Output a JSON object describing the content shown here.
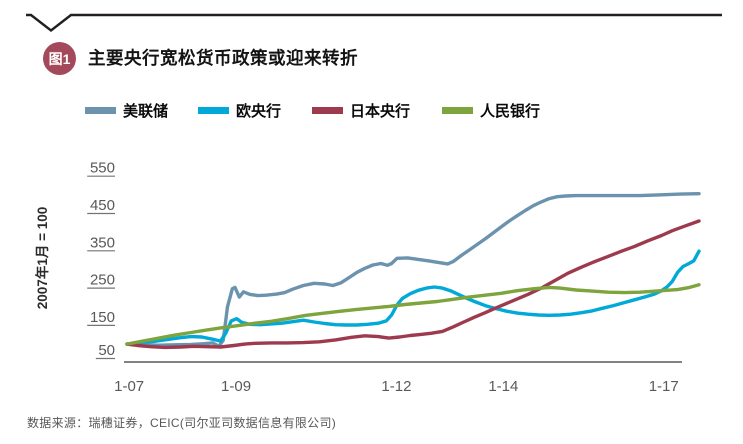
{
  "header": {
    "figure_badge": "图1",
    "title": "主要央行宽松货币政策或迎来转折"
  },
  "legend": [
    {
      "label": "美联储",
      "color": "#6b93ae"
    },
    {
      "label": "欧央行",
      "color": "#00a9d8"
    },
    {
      "label": "日本央行",
      "color": "#9d3a4d"
    },
    {
      "label": "人民银行",
      "color": "#7ea43d"
    }
  ],
  "source": "数据来源：瑞穗证券，CEIC(司尔亚司数据信息有限公司)",
  "badge_color": "#a4495b",
  "chart_data": {
    "type": "line",
    "title": "主要央行宽松货币政策或迎来转折",
    "xlabel": "",
    "ylabel": "2007年1月 = 100",
    "ylim": [
      50,
      570
    ],
    "xlim": [
      2007.0,
      2017.7
    ],
    "grid": false,
    "legend_position": "top",
    "yticks": [
      550,
      450,
      350,
      250,
      150,
      50
    ],
    "xticks": [
      {
        "label": "1-07",
        "year": 2007.04
      },
      {
        "label": "1-09",
        "year": 2009.04
      },
      {
        "label": "1-12",
        "year": 2012.04
      },
      {
        "label": "1-14",
        "year": 2014.04
      },
      {
        "label": "1-17",
        "year": 2017.04
      }
    ],
    "series": [
      {
        "name": "美联储",
        "color": "#6b93ae",
        "points": [
          [
            2007.0,
            100
          ],
          [
            2007.3,
            98
          ],
          [
            2007.6,
            97
          ],
          [
            2007.9,
            98
          ],
          [
            2008.2,
            99
          ],
          [
            2008.45,
            101
          ],
          [
            2008.6,
            103
          ],
          [
            2008.72,
            94
          ],
          [
            2008.8,
            110
          ],
          [
            2008.88,
            200
          ],
          [
            2008.97,
            248
          ],
          [
            2009.02,
            252
          ],
          [
            2009.1,
            226
          ],
          [
            2009.18,
            240
          ],
          [
            2009.3,
            233
          ],
          [
            2009.45,
            230
          ],
          [
            2009.6,
            231
          ],
          [
            2009.8,
            234
          ],
          [
            2009.95,
            238
          ],
          [
            2010.1,
            247
          ],
          [
            2010.3,
            257
          ],
          [
            2010.5,
            263
          ],
          [
            2010.7,
            261
          ],
          [
            2010.85,
            257
          ],
          [
            2011.0,
            264
          ],
          [
            2011.15,
            278
          ],
          [
            2011.3,
            292
          ],
          [
            2011.45,
            303
          ],
          [
            2011.6,
            312
          ],
          [
            2011.75,
            316
          ],
          [
            2011.87,
            311
          ],
          [
            2011.95,
            316
          ],
          [
            2012.05,
            330
          ],
          [
            2012.25,
            331
          ],
          [
            2012.45,
            327
          ],
          [
            2012.65,
            323
          ],
          [
            2012.85,
            318
          ],
          [
            2013.0,
            315
          ],
          [
            2013.1,
            321
          ],
          [
            2013.25,
            337
          ],
          [
            2013.4,
            352
          ],
          [
            2013.55,
            367
          ],
          [
            2013.7,
            382
          ],
          [
            2013.85,
            398
          ],
          [
            2014.0,
            414
          ],
          [
            2014.15,
            430
          ],
          [
            2014.3,
            444
          ],
          [
            2014.45,
            458
          ],
          [
            2014.6,
            471
          ],
          [
            2014.75,
            481
          ],
          [
            2014.9,
            490
          ],
          [
            2015.05,
            495
          ],
          [
            2015.2,
            497
          ],
          [
            2015.4,
            498
          ],
          [
            2015.8,
            498
          ],
          [
            2016.2,
            498
          ],
          [
            2016.6,
            498
          ],
          [
            2017.0,
            500
          ],
          [
            2017.35,
            502
          ],
          [
            2017.7,
            503
          ]
        ]
      },
      {
        "name": "欧央行",
        "color": "#00a9d8",
        "points": [
          [
            2007.0,
            100
          ],
          [
            2007.25,
            104
          ],
          [
            2007.5,
            107
          ],
          [
            2007.75,
            112
          ],
          [
            2008.0,
            117
          ],
          [
            2008.2,
            120
          ],
          [
            2008.4,
            119
          ],
          [
            2008.6,
            113
          ],
          [
            2008.75,
            108
          ],
          [
            2008.85,
            130
          ],
          [
            2008.95,
            162
          ],
          [
            2009.05,
            168
          ],
          [
            2009.15,
            158
          ],
          [
            2009.3,
            153
          ],
          [
            2009.5,
            152
          ],
          [
            2009.7,
            154
          ],
          [
            2009.9,
            156
          ],
          [
            2010.1,
            160
          ],
          [
            2010.3,
            164
          ],
          [
            2010.5,
            159
          ],
          [
            2010.7,
            155
          ],
          [
            2010.9,
            152
          ],
          [
            2011.1,
            151
          ],
          [
            2011.3,
            151
          ],
          [
            2011.5,
            153
          ],
          [
            2011.7,
            156
          ],
          [
            2011.85,
            162
          ],
          [
            2011.95,
            178
          ],
          [
            2012.05,
            205
          ],
          [
            2012.15,
            222
          ],
          [
            2012.3,
            235
          ],
          [
            2012.45,
            244
          ],
          [
            2012.6,
            250
          ],
          [
            2012.75,
            253
          ],
          [
            2012.9,
            250
          ],
          [
            2013.05,
            243
          ],
          [
            2013.2,
            233
          ],
          [
            2013.35,
            223
          ],
          [
            2013.5,
            214
          ],
          [
            2013.7,
            203
          ],
          [
            2013.9,
            195
          ],
          [
            2014.1,
            188
          ],
          [
            2014.3,
            183
          ],
          [
            2014.5,
            180
          ],
          [
            2014.7,
            178
          ],
          [
            2014.9,
            177
          ],
          [
            2015.1,
            178
          ],
          [
            2015.3,
            180
          ],
          [
            2015.5,
            184
          ],
          [
            2015.7,
            189
          ],
          [
            2015.9,
            196
          ],
          [
            2016.1,
            203
          ],
          [
            2016.3,
            211
          ],
          [
            2016.5,
            219
          ],
          [
            2016.7,
            227
          ],
          [
            2016.85,
            233
          ],
          [
            2017.0,
            243
          ],
          [
            2017.1,
            253
          ],
          [
            2017.2,
            268
          ],
          [
            2017.3,
            292
          ],
          [
            2017.4,
            308
          ],
          [
            2017.5,
            315
          ],
          [
            2017.6,
            323
          ],
          [
            2017.7,
            349
          ]
        ]
      },
      {
        "name": "日本央行",
        "color": "#9d3a4d",
        "points": [
          [
            2007.0,
            100
          ],
          [
            2007.2,
            96
          ],
          [
            2007.45,
            93
          ],
          [
            2007.7,
            91
          ],
          [
            2008.0,
            92
          ],
          [
            2008.25,
            94
          ],
          [
            2008.5,
            93
          ],
          [
            2008.75,
            92
          ],
          [
            2009.0,
            96
          ],
          [
            2009.2,
            100
          ],
          [
            2009.4,
            102
          ],
          [
            2009.7,
            103
          ],
          [
            2010.0,
            103
          ],
          [
            2010.3,
            104
          ],
          [
            2010.6,
            106
          ],
          [
            2010.9,
            111
          ],
          [
            2011.2,
            118
          ],
          [
            2011.45,
            122
          ],
          [
            2011.7,
            120
          ],
          [
            2011.9,
            116
          ],
          [
            2012.1,
            119
          ],
          [
            2012.3,
            123
          ],
          [
            2012.5,
            126
          ],
          [
            2012.7,
            129
          ],
          [
            2012.9,
            134
          ],
          [
            2013.1,
            146
          ],
          [
            2013.3,
            159
          ],
          [
            2013.5,
            172
          ],
          [
            2013.7,
            184
          ],
          [
            2013.9,
            197
          ],
          [
            2014.1,
            209
          ],
          [
            2014.3,
            221
          ],
          [
            2014.5,
            233
          ],
          [
            2014.75,
            250
          ],
          [
            2015.0,
            270
          ],
          [
            2015.25,
            290
          ],
          [
            2015.5,
            306
          ],
          [
            2015.75,
            321
          ],
          [
            2016.0,
            335
          ],
          [
            2016.25,
            349
          ],
          [
            2016.5,
            362
          ],
          [
            2016.75,
            377
          ],
          [
            2017.0,
            391
          ],
          [
            2017.2,
            404
          ],
          [
            2017.45,
            417
          ],
          [
            2017.7,
            430
          ]
        ]
      },
      {
        "name": "人民银行",
        "color": "#7ea43d",
        "points": [
          [
            2007.0,
            100
          ],
          [
            2007.3,
            108
          ],
          [
            2007.6,
            116
          ],
          [
            2007.9,
            124
          ],
          [
            2008.2,
            131
          ],
          [
            2008.5,
            138
          ],
          [
            2008.8,
            144
          ],
          [
            2009.1,
            150
          ],
          [
            2009.4,
            156
          ],
          [
            2009.7,
            161
          ],
          [
            2010.0,
            168
          ],
          [
            2010.35,
            177
          ],
          [
            2010.7,
            183
          ],
          [
            2011.0,
            188
          ],
          [
            2011.3,
            193
          ],
          [
            2011.6,
            197
          ],
          [
            2011.9,
            201
          ],
          [
            2012.2,
            206
          ],
          [
            2012.5,
            210
          ],
          [
            2012.8,
            214
          ],
          [
            2013.1,
            220
          ],
          [
            2013.4,
            226
          ],
          [
            2013.7,
            231
          ],
          [
            2014.0,
            236
          ],
          [
            2014.3,
            243
          ],
          [
            2014.6,
            248
          ],
          [
            2014.9,
            252
          ],
          [
            2015.1,
            250
          ],
          [
            2015.4,
            245
          ],
          [
            2015.7,
            242
          ],
          [
            2016.0,
            239
          ],
          [
            2016.3,
            238
          ],
          [
            2016.6,
            239
          ],
          [
            2016.9,
            242
          ],
          [
            2017.1,
            244
          ],
          [
            2017.3,
            246
          ],
          [
            2017.5,
            251
          ],
          [
            2017.7,
            259
          ]
        ]
      }
    ]
  }
}
